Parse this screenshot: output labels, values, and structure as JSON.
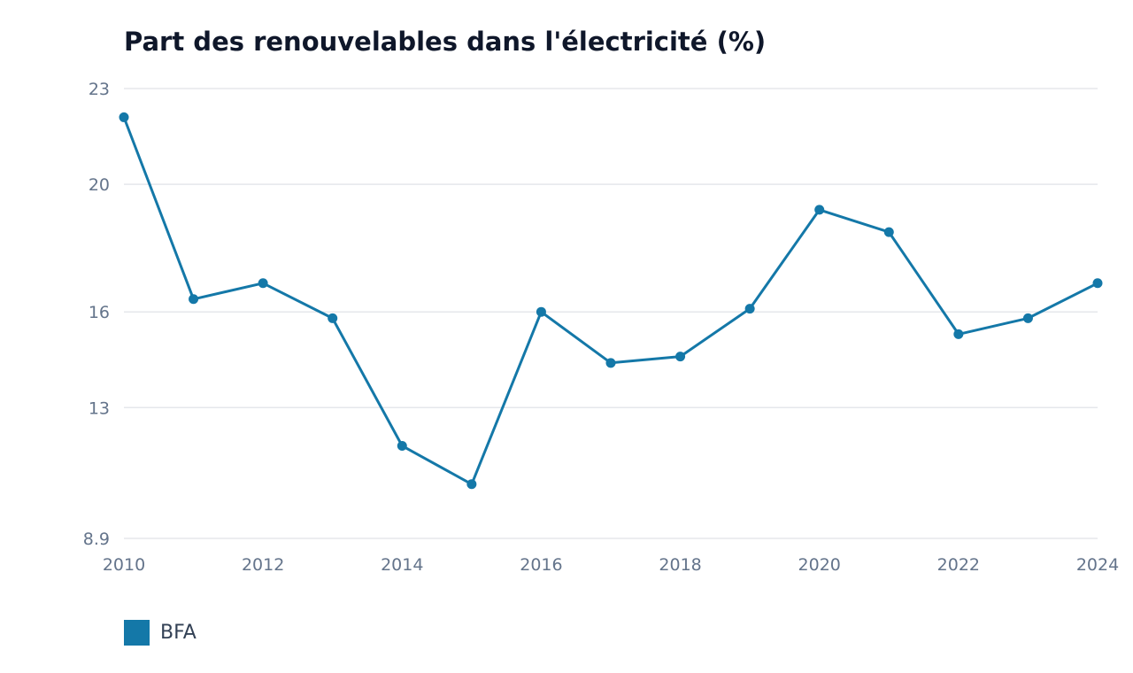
{
  "chart_data": {
    "type": "line",
    "title": "Part des renouvelables dans l'électricité (%)",
    "xlabel": "",
    "ylabel": "",
    "x": [
      2010,
      2011,
      2012,
      2013,
      2014,
      2015,
      2016,
      2017,
      2018,
      2019,
      2020,
      2021,
      2022,
      2023,
      2024
    ],
    "x_ticks": [
      "2010",
      "2012",
      "2014",
      "2016",
      "2018",
      "2020",
      "2022",
      "2024"
    ],
    "y_ticks": [
      "8.9",
      "13",
      "16",
      "20",
      "23"
    ],
    "ylim": [
      8.9,
      23
    ],
    "xlim": [
      2010,
      2024
    ],
    "grid": true,
    "legend_position": "bottom-left",
    "series": [
      {
        "name": "BFA",
        "color": "#1478a8",
        "values": [
          22.1,
          16.4,
          16.9,
          15.8,
          11.8,
          10.6,
          16.0,
          14.4,
          14.6,
          16.1,
          19.2,
          18.5,
          15.3,
          15.8,
          16.9
        ]
      }
    ]
  }
}
